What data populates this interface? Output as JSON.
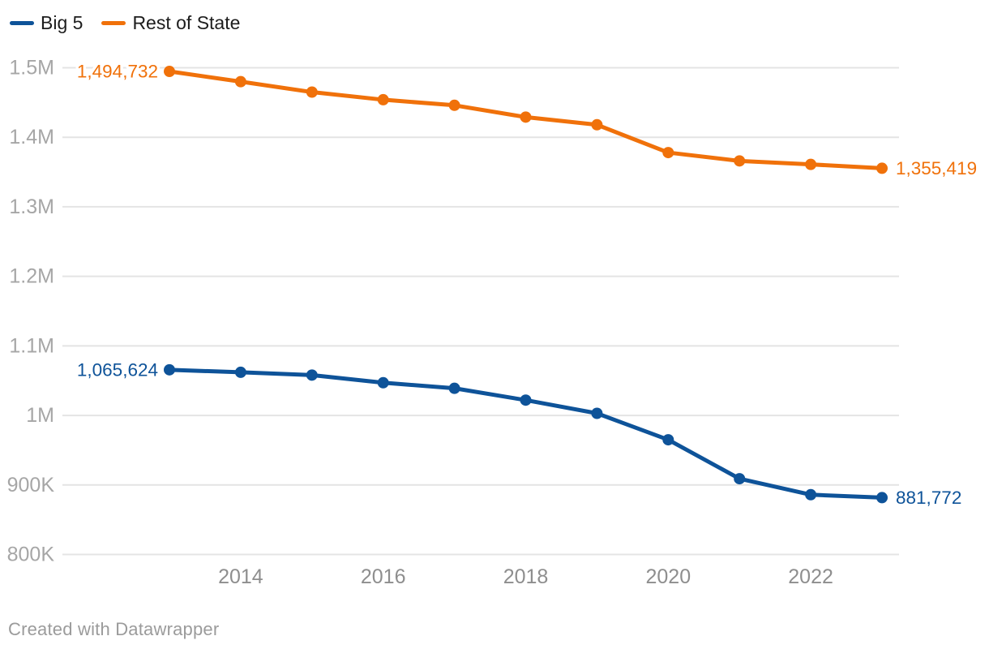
{
  "footer": {
    "attribution": "Created with Datawrapper"
  },
  "chart_data": {
    "type": "line",
    "title": "",
    "xlabel": "",
    "ylabel": "",
    "x": [
      2013,
      2014,
      2015,
      2016,
      2017,
      2018,
      2019,
      2020,
      2021,
      2022,
      2023
    ],
    "xlim": [
      2013,
      2023
    ],
    "ylim": [
      800000,
      1500000
    ],
    "grid": true,
    "legend_position": "top-left",
    "series": [
      {
        "name": "Big 5",
        "color": "#0e5399",
        "values": [
          1065624,
          1062000,
          1058000,
          1047000,
          1039000,
          1022000,
          1003000,
          965000,
          909000,
          886000,
          881772
        ],
        "first_label": "1,065,624",
        "last_label": "881,772"
      },
      {
        "name": "Rest of State",
        "color": "#f0710a",
        "values": [
          1494732,
          1480000,
          1465000,
          1454000,
          1446000,
          1429000,
          1418000,
          1378000,
          1366000,
          1361000,
          1355419
        ],
        "first_label": "1,494,732",
        "last_label": "1,355,419"
      }
    ],
    "y_ticks": [
      {
        "value": 1500000,
        "label": "1.5M"
      },
      {
        "value": 1400000,
        "label": "1.4M"
      },
      {
        "value": 1300000,
        "label": "1.3M"
      },
      {
        "value": 1200000,
        "label": "1.2M"
      },
      {
        "value": 1100000,
        "label": "1.1M"
      },
      {
        "value": 1000000,
        "label": "1M"
      },
      {
        "value": 900000,
        "label": "900K"
      },
      {
        "value": 800000,
        "label": "800K"
      }
    ],
    "x_ticks": [
      {
        "value": 2014,
        "label": "2014"
      },
      {
        "value": 2016,
        "label": "2016"
      },
      {
        "value": 2018,
        "label": "2018"
      },
      {
        "value": 2020,
        "label": "2020"
      },
      {
        "value": 2022,
        "label": "2022"
      }
    ],
    "styles": {
      "grid_color": "#e4e4e4",
      "y_tick_color": "#a6a6a6",
      "x_tick_color": "#8e8e8e",
      "line_width": 5,
      "marker_radius": 7
    }
  }
}
